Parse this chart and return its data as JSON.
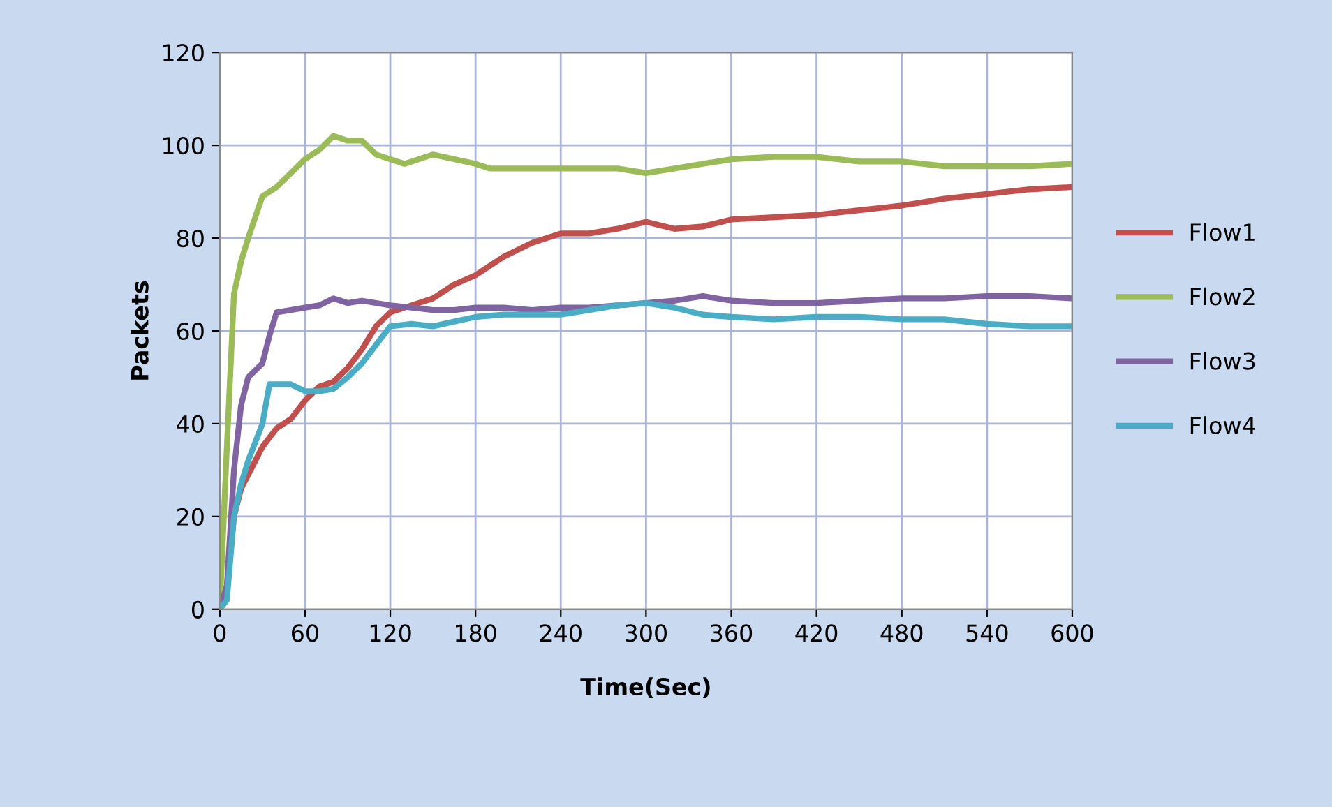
{
  "chart_data": {
    "type": "line",
    "xlabel": "Time(Sec)",
    "ylabel": "Packets",
    "xlim": [
      0,
      600
    ],
    "ylim": [
      0,
      120
    ],
    "xticks": [
      0,
      60,
      120,
      180,
      240,
      300,
      360,
      420,
      480,
      540,
      600
    ],
    "yticks": [
      0,
      20,
      40,
      60,
      80,
      100,
      120
    ],
    "grid": true,
    "legend": "right",
    "marker": "none",
    "line_style": "solid",
    "series": [
      {
        "name": "Flow1",
        "color": "#c0504d",
        "x": [
          0,
          5,
          10,
          15,
          20,
          30,
          40,
          50,
          60,
          70,
          80,
          90,
          100,
          110,
          120,
          135,
          150,
          165,
          180,
          200,
          220,
          240,
          260,
          280,
          300,
          320,
          340,
          360,
          390,
          420,
          450,
          480,
          510,
          540,
          570,
          600
        ],
        "values": [
          0,
          5,
          20,
          26,
          29,
          35,
          39,
          41,
          45,
          48,
          49,
          52,
          56,
          61,
          64,
          65.5,
          67,
          70,
          72,
          76,
          79,
          81,
          81,
          82,
          83.5,
          82,
          82.5,
          84,
          84.5,
          85,
          86,
          87,
          88.5,
          89.5,
          90.5,
          91
        ]
      },
      {
        "name": "Flow2",
        "color": "#9bbb59",
        "x": [
          0,
          5,
          10,
          15,
          20,
          30,
          40,
          50,
          60,
          70,
          80,
          90,
          100,
          110,
          120,
          130,
          150,
          165,
          180,
          190,
          240,
          260,
          280,
          300,
          320,
          340,
          360,
          390,
          420,
          450,
          480,
          510,
          540,
          570,
          600
        ],
        "values": [
          0,
          35,
          68,
          75,
          80,
          89,
          91,
          94,
          97,
          99,
          102,
          101,
          101,
          98,
          97,
          96,
          98,
          97,
          96,
          95,
          95,
          95,
          95,
          94,
          95,
          96,
          97,
          97.5,
          97.5,
          96.5,
          96.5,
          95.5,
          95.5,
          95.5,
          96
        ]
      },
      {
        "name": "Flow3",
        "color": "#8064a2",
        "x": [
          0,
          5,
          10,
          15,
          20,
          30,
          35,
          40,
          50,
          60,
          70,
          80,
          90,
          100,
          120,
          135,
          150,
          165,
          180,
          200,
          220,
          240,
          260,
          280,
          300,
          320,
          340,
          360,
          390,
          420,
          450,
          480,
          510,
          540,
          570,
          600
        ],
        "values": [
          0,
          5,
          30,
          44,
          50,
          53,
          59,
          64,
          64.5,
          65,
          65.5,
          67,
          66,
          66.5,
          65.5,
          65,
          64.5,
          64.5,
          65,
          65,
          64.5,
          65,
          65,
          65.5,
          66,
          66.5,
          67.5,
          66.5,
          66,
          66,
          66.5,
          67,
          67,
          67.5,
          67.5,
          67
        ]
      },
      {
        "name": "Flow4",
        "color": "#4bacc6",
        "x": [
          0,
          5,
          10,
          15,
          20,
          30,
          35,
          40,
          50,
          60,
          70,
          80,
          90,
          100,
          110,
          120,
          135,
          150,
          165,
          180,
          200,
          220,
          240,
          260,
          280,
          300,
          320,
          340,
          360,
          390,
          420,
          450,
          480,
          510,
          540,
          570,
          600
        ],
        "values": [
          0,
          2,
          20,
          27,
          32,
          40,
          48.5,
          48.5,
          48.5,
          47,
          47,
          47.5,
          50,
          53,
          57,
          61,
          61.5,
          61,
          62,
          63,
          63.5,
          63.5,
          63.5,
          64.5,
          65.5,
          66,
          65,
          63.5,
          63,
          62.5,
          63,
          63,
          62.5,
          62.5,
          61.5,
          61,
          61
        ]
      }
    ]
  }
}
